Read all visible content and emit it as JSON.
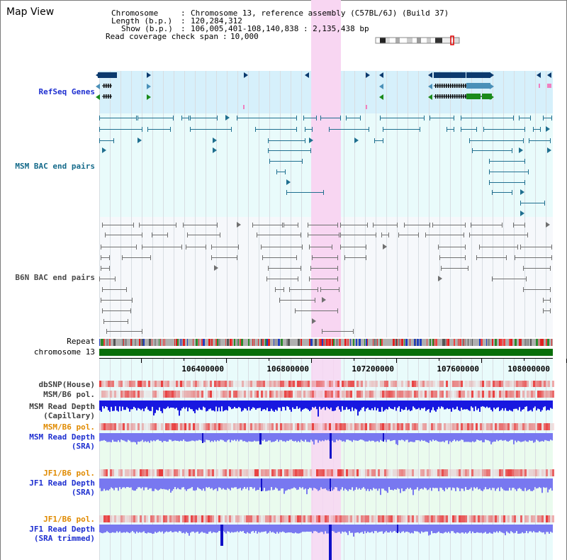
{
  "window": {
    "title": "Map View"
  },
  "info": {
    "chromosome_label": "Chromosome",
    "chromosome_value": "Chromosome 13, reference assembly (C57BL/6J) (Build 37)",
    "length_label": "Length (b.p.)",
    "length_value": "120,284,312",
    "show_label": "Show (b.p.)",
    "show_value": "106,005,401-108,140,838 : 2,135,438 bp",
    "span_label": "Read coverage check span",
    "span_value": "10,000"
  },
  "tracks": {
    "refseq": "RefSeq Genes",
    "msm_bac": "MSM BAC end pairs",
    "b6n_bac": "B6N BAC end pairs",
    "repeat": "Repeat",
    "chromosome": "chromosome 13",
    "dbsnp": "dbSNP(House)",
    "msm_pol": "MSM/B6 pol.",
    "msm_depth_cap_1": "MSM Read Depth",
    "msm_depth_cap_2": "(Capillary)",
    "msm_pol_2": "MSM/B6 pol.",
    "msm_depth_sra_1": "MSM Read Depth",
    "msm_depth_sra_2": "(SRA)",
    "jf1_pol": "JF1/B6 pol.",
    "jf1_depth_sra_1": "JF1 Read Depth",
    "jf1_depth_sra_2": "(SRA)",
    "jf1_pol_2": "JF1/B6 pol.",
    "jf1_depth_trim_1": "JF1 Read Depth",
    "jf1_depth_trim_2": "(SRA trimmed)"
  },
  "axis": {
    "ticks": [
      "106400000",
      "106800000",
      "107200000",
      "107600000",
      "108000000"
    ]
  },
  "colors": {
    "refseq_bg": "#d6f0fb",
    "track_bg": "#e9fbfb",
    "highlight": "#f8d6f2",
    "chromosome_bar": "#0a6e0a",
    "gene_dark": "#0b3a6e",
    "gene_teal": "#4a90b8",
    "gene_green": "#1a8a1a",
    "bac_teal": "#1f6f8f",
    "bac_gray": "#707070",
    "depth_blue": "#1818e0",
    "depth_light": "#7878f0",
    "pol_red": "#e84040"
  }
}
